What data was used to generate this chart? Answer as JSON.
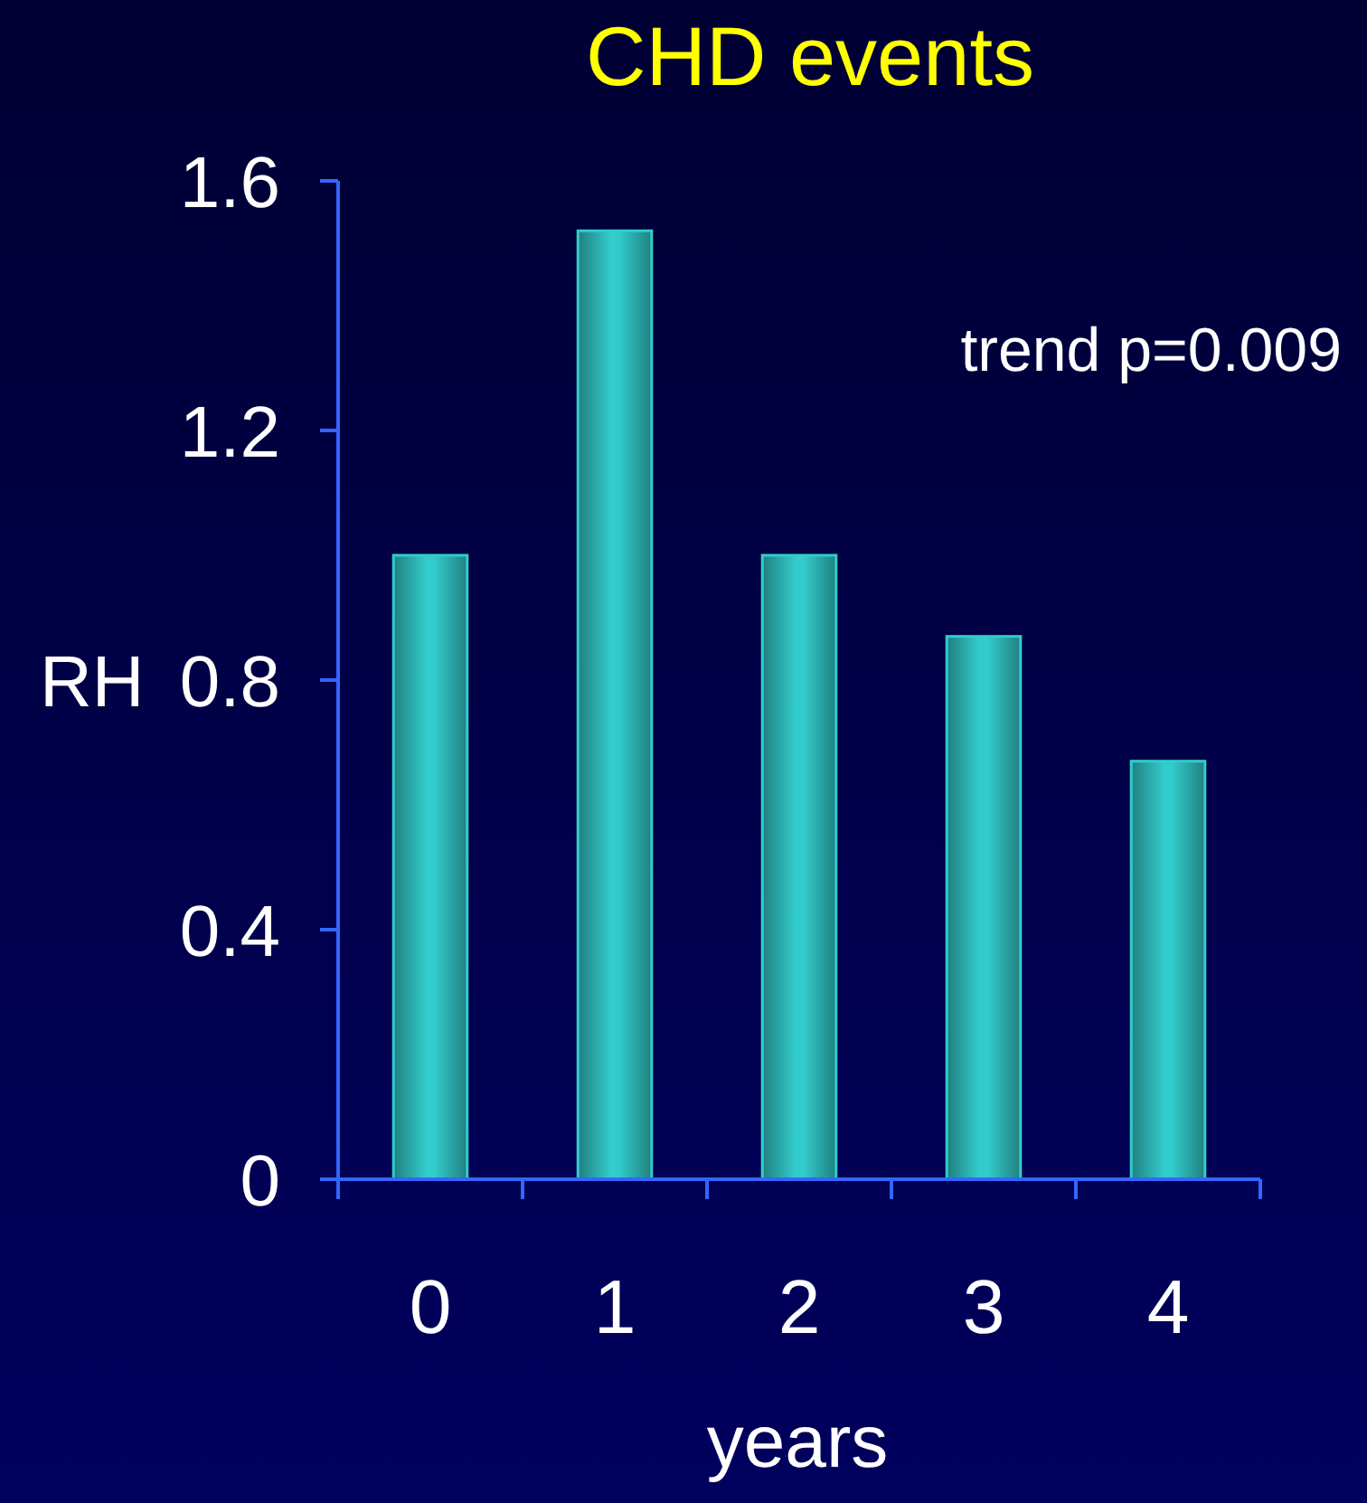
{
  "chart_data": {
    "type": "bar",
    "title": "CHD events",
    "xlabel": "years",
    "ylabel": "RH",
    "categories": [
      "0",
      "1",
      "2",
      "3",
      "4"
    ],
    "values": [
      1.0,
      1.52,
      1.0,
      0.87,
      0.67
    ],
    "color": "#33cccc",
    "ylim": [
      0,
      1.6
    ],
    "yticks": [
      0,
      0.4,
      0.8,
      1.2,
      1.6
    ],
    "annotations": [
      "trend p=0.009"
    ]
  }
}
